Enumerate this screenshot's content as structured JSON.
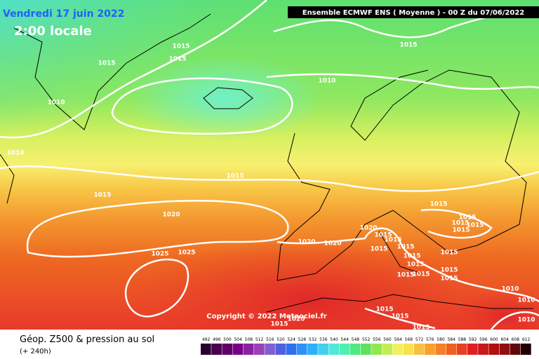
{
  "header": {
    "date": "Vendredi 17 juin 2022",
    "time": "2:00 locale",
    "model": "Ensemble ECMWF ENS  ( Moyenne )  - 00 Z du 07/06/2022"
  },
  "copyright": "Copyright © 2022 Meteociel.fr",
  "footer": {
    "title": "Géop. Z500 & pression au sol",
    "lead": "(+ 240h)"
  },
  "isobar_labels": [
    "1015",
    "1015",
    "1015",
    "1010",
    "1010",
    "1015",
    "1010",
    "1015",
    "1015",
    "1020",
    "1025",
    "1025",
    "1020",
    "1020",
    "1020",
    "1015",
    "1015",
    "1015",
    "1015",
    "1015",
    "1015",
    "1015",
    "1015",
    "1015",
    "1015",
    "1015",
    "1015",
    "1015",
    "1015",
    "1015",
    "1015",
    "1010",
    "1010",
    "1010",
    "1015",
    "1015",
    "1015",
    "1015",
    "1020"
  ],
  "legend": {
    "values": [
      492,
      496,
      500,
      504,
      508,
      512,
      516,
      520,
      524,
      528,
      532,
      536,
      540,
      544,
      548,
      552,
      556,
      560,
      564,
      568,
      572,
      576,
      580,
      584,
      588,
      592,
      596,
      600,
      604,
      608,
      612
    ]
  }
}
